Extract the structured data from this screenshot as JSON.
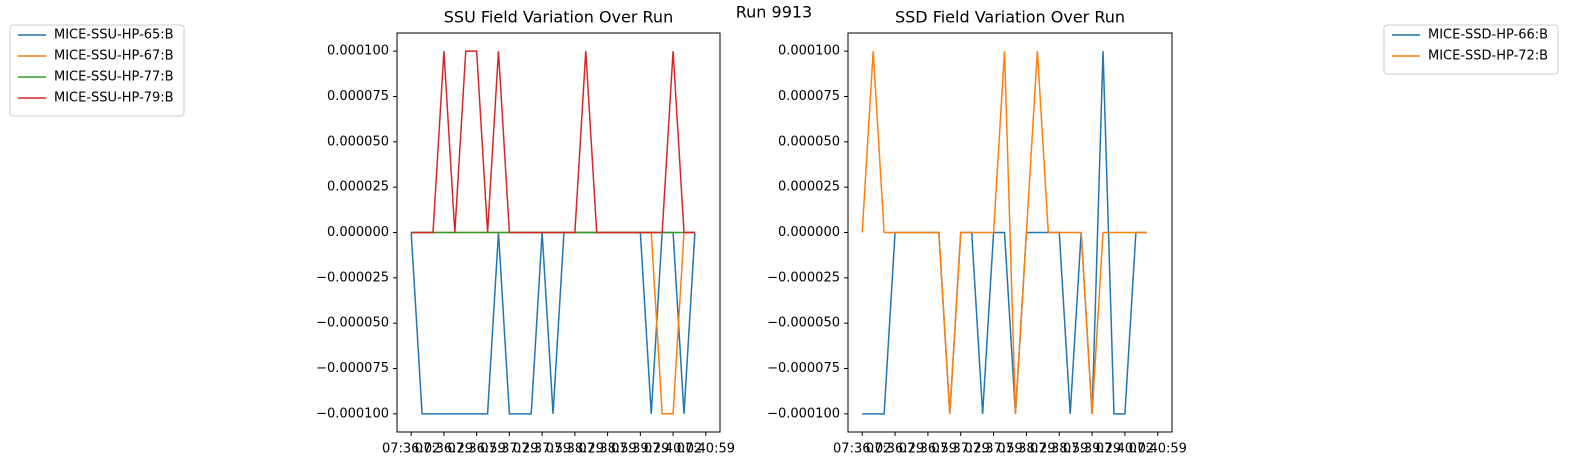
{
  "figure_title": "Run 9913",
  "chart_data": [
    {
      "type": "line",
      "title": "SSU Field Variation Over Run",
      "legend": "upper left",
      "grid": false,
      "categories": [
        "07:36:02",
        null,
        null,
        "07:36:29",
        null,
        null,
        "07:36:59",
        null,
        null,
        "07:37:29",
        null,
        null,
        "07:37:59",
        null,
        null,
        "07:38:29",
        null,
        null,
        "07:38:59",
        null,
        null,
        "07:39:29",
        null,
        null,
        "07:40:02",
        null,
        null,
        "07:40:59"
      ],
      "ylim": [
        -0.00011,
        0.00011
      ],
      "yticks": [
        {
          "value": -0.0001,
          "label": "−0.000100"
        },
        {
          "value": -7.5e-05,
          "label": "−0.000075"
        },
        {
          "value": -5e-05,
          "label": "−0.000050"
        },
        {
          "value": -2.5e-05,
          "label": "−0.000025"
        },
        {
          "value": 0,
          "label": "0.000000"
        },
        {
          "value": 2.5e-05,
          "label": "0.000025"
        },
        {
          "value": 5e-05,
          "label": "0.000050"
        },
        {
          "value": 7.5e-05,
          "label": "0.000075"
        },
        {
          "value": 0.0001,
          "label": "0.000100"
        }
      ],
      "series": [
        {
          "name": "MICE-SSU-HP-65:B",
          "color": "#1f77b4",
          "values": [
            0,
            -0.0001,
            -0.0001,
            -0.0001,
            -0.0001,
            -0.0001,
            -0.0001,
            -0.0001,
            0,
            -0.0001,
            -0.0001,
            -0.0001,
            0,
            -0.0001,
            0,
            0,
            0,
            0,
            0,
            0,
            0,
            0,
            -0.0001,
            0,
            0,
            -0.0001,
            0,
            null
          ]
        },
        {
          "name": "MICE-SSU-HP-67:B",
          "color": "#ff7f0e",
          "values": [
            0,
            0,
            0,
            0,
            0,
            0,
            0,
            0,
            0,
            0,
            0,
            0,
            0,
            0,
            0,
            0,
            0,
            0,
            0,
            0,
            0,
            0,
            0,
            -0.0001,
            -0.0001,
            0,
            0,
            null
          ]
        },
        {
          "name": "MICE-SSU-HP-77:B",
          "color": "#2ca02c",
          "values": [
            0,
            0,
            0,
            0,
            0,
            0,
            0,
            0,
            0,
            0,
            0,
            0,
            0,
            0,
            0,
            0,
            0,
            0,
            0,
            0,
            0,
            0,
            0,
            0,
            0,
            0,
            0,
            null
          ]
        },
        {
          "name": "MICE-SSU-HP-79:B",
          "color": "#d62728",
          "values": [
            0,
            0,
            0,
            0.0001,
            0,
            0.0001,
            0.0001,
            0,
            0.0001,
            0,
            0,
            0,
            0,
            0,
            0,
            0,
            0.0001,
            0,
            0,
            0,
            0,
            0,
            0,
            0,
            0.0001,
            0,
            0,
            null
          ]
        }
      ]
    },
    {
      "type": "line",
      "title": "SSD Field Variation Over Run",
      "legend": "upper right",
      "grid": false,
      "categories": [
        "07:36:02",
        null,
        null,
        "07:36:29",
        null,
        null,
        "07:36:59",
        null,
        null,
        "07:37:29",
        null,
        null,
        "07:37:59",
        null,
        null,
        "07:38:29",
        null,
        null,
        "07:38:59",
        null,
        null,
        "07:39:29",
        null,
        null,
        "07:40:02",
        null,
        null,
        "07:40:59"
      ],
      "ylim": [
        -0.00011,
        0.00011
      ],
      "yticks": [
        {
          "value": -0.0001,
          "label": "−0.000100"
        },
        {
          "value": -7.5e-05,
          "label": "−0.000075"
        },
        {
          "value": -5e-05,
          "label": "−0.000050"
        },
        {
          "value": -2.5e-05,
          "label": "−0.000025"
        },
        {
          "value": 0,
          "label": "0.000000"
        },
        {
          "value": 2.5e-05,
          "label": "0.000025"
        },
        {
          "value": 5e-05,
          "label": "0.000050"
        },
        {
          "value": 7.5e-05,
          "label": "0.000075"
        },
        {
          "value": 0.0001,
          "label": "0.000100"
        }
      ],
      "series": [
        {
          "name": "MICE-SSD-HP-66:B",
          "color": "#1f77b4",
          "values": [
            -0.0001,
            -0.0001,
            -0.0001,
            0,
            0,
            0,
            0,
            0,
            -0.0001,
            0,
            0,
            -0.0001,
            0,
            0,
            -0.0001,
            0,
            0,
            0,
            0,
            -0.0001,
            0,
            -0.0001,
            0.0001,
            -0.0001,
            -0.0001,
            0,
            0,
            null
          ]
        },
        {
          "name": "MICE-SSD-HP-72:B",
          "color": "#ff7f0e",
          "values": [
            0,
            0.0001,
            0,
            0,
            0,
            0,
            0,
            0,
            -0.0001,
            0,
            0,
            0,
            0,
            0.0001,
            -0.0001,
            0,
            0.0001,
            0,
            0,
            0,
            0,
            -0.0001,
            0,
            0,
            0,
            0,
            0,
            null
          ]
        }
      ]
    }
  ]
}
